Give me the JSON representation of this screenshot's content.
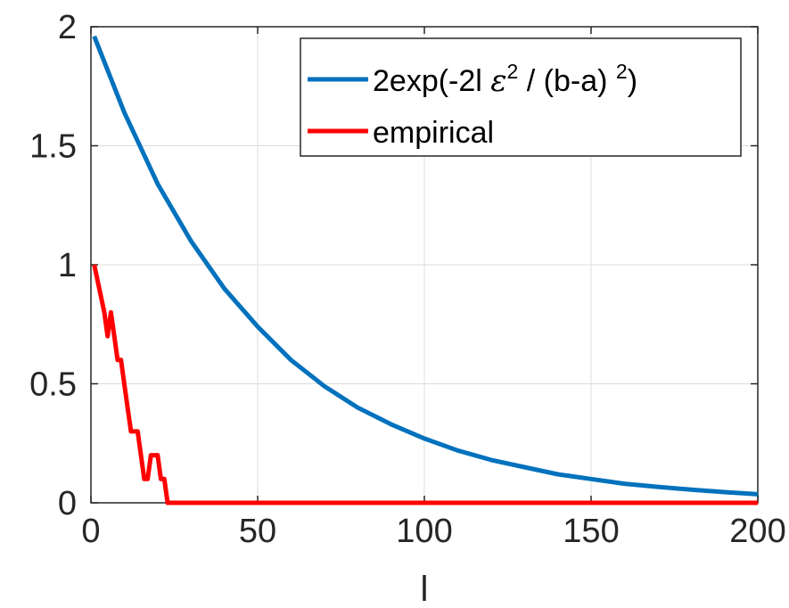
{
  "chart_data": {
    "type": "line",
    "title": "",
    "xlabel": "l",
    "ylabel": "",
    "xlim": [
      0,
      200
    ],
    "ylim": [
      0,
      2
    ],
    "xticks": [
      0,
      50,
      100,
      150,
      200
    ],
    "xtick_labels": [
      "0",
      "50",
      "100",
      "150",
      "200"
    ],
    "yticks": [
      0,
      0.5,
      1,
      1.5,
      2
    ],
    "ytick_labels": [
      "0",
      "0.5",
      "1",
      "1.5",
      "2"
    ],
    "grid": true,
    "legend": {
      "placement": "top-right",
      "entries": [
        {
          "series": 0,
          "parts": [
            {
              "text": "2exp(-2l ",
              "style": "normal"
            },
            {
              "text": "ε",
              "style": "eps"
            },
            {
              "text": "2",
              "style": "sup"
            },
            {
              "text": " / (b-a) ",
              "style": "normal"
            },
            {
              "text": "2",
              "style": "sup"
            },
            {
              "text": ")",
              "style": "normal"
            }
          ]
        },
        {
          "series": 1,
          "parts": [
            {
              "text": "empirical",
              "style": "normal"
            }
          ]
        }
      ]
    },
    "series": [
      {
        "color": "#0072bd",
        "x": [
          1,
          10,
          20,
          30,
          40,
          50,
          60,
          70,
          80,
          90,
          100,
          110,
          120,
          130,
          140,
          150,
          160,
          170,
          180,
          190,
          200
        ],
        "y": [
          1.96,
          1.64,
          1.34,
          1.1,
          0.9,
          0.74,
          0.6,
          0.49,
          0.4,
          0.33,
          0.27,
          0.22,
          0.18,
          0.15,
          0.12,
          0.1,
          0.08,
          0.067,
          0.055,
          0.045,
          0.036
        ]
      },
      {
        "color": "#ff0000",
        "x": [
          1,
          4,
          5,
          6,
          7,
          8,
          9,
          10,
          11,
          12,
          13,
          14,
          15,
          16,
          17,
          18,
          19,
          20,
          21,
          22,
          23,
          200
        ],
        "y": [
          1.0,
          0.8,
          0.7,
          0.8,
          0.7,
          0.6,
          0.6,
          0.5,
          0.4,
          0.3,
          0.3,
          0.3,
          0.2,
          0.1,
          0.1,
          0.2,
          0.2,
          0.2,
          0.1,
          0.1,
          0.0,
          0.0
        ]
      }
    ]
  }
}
